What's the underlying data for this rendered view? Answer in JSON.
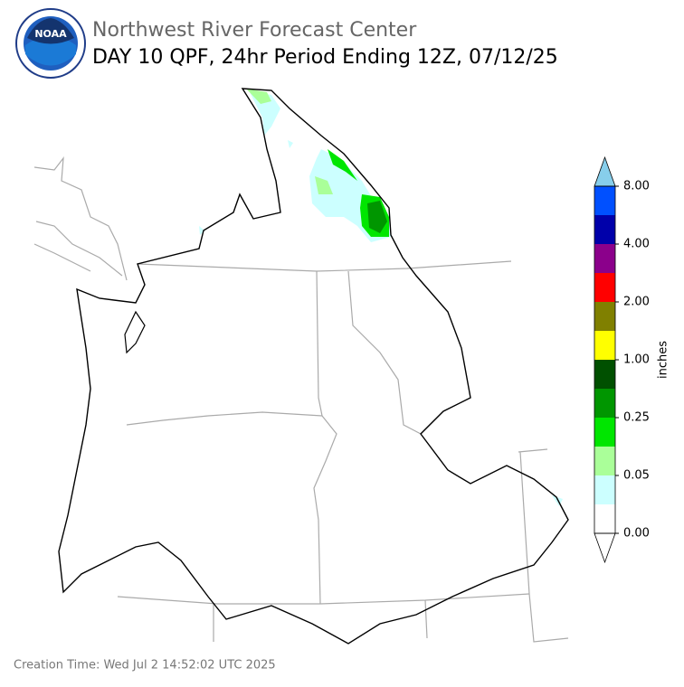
{
  "header": {
    "logo_text": "NOAA",
    "agency": "Northwest River Forecast Center",
    "product": "DAY 10 QPF, 24hr Period Ending 12Z, 07/12/25"
  },
  "colorbar": {
    "label": "inches",
    "colors": [
      "#ffffff",
      "#ccffff",
      "#aaff99",
      "#00e600",
      "#009600",
      "#005000",
      "#ffff00",
      "#808000",
      "#ff0000",
      "#8b008b",
      "#0000aa",
      "#0050ff"
    ],
    "extend_below": "#ffffff",
    "extend_above": "#87ceeb",
    "ticks": [
      {
        "value": 0,
        "label": "0.00"
      },
      {
        "value": 0.05,
        "label": "0.05"
      },
      {
        "value": 0.25,
        "label": "0.25"
      },
      {
        "value": 1,
        "label": "1.00"
      },
      {
        "value": 2,
        "label": "2.00"
      },
      {
        "value": 4,
        "label": "4.00"
      },
      {
        "value": 8,
        "label": "8.00"
      }
    ]
  },
  "footer": {
    "creation_time": "Creation Time: Wed Jul 2 14:52:02 UTC 2025"
  }
}
